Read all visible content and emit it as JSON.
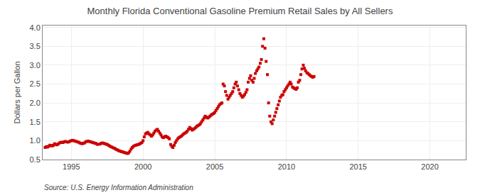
{
  "chart_data": {
    "type": "scatter",
    "title": "Monthly Florida Conventional Gasoline Premium Retail Sales by All Sellers",
    "ylabel": "Dollars per Gallon",
    "annotations": [
      "Source: U.S. Energy Information Administration"
    ],
    "color": "#cc0000",
    "marker": "square",
    "grid": true,
    "xlim": [
      1993.0,
      2022.5
    ],
    "ylim": [
      0.5,
      4.05
    ],
    "xticks": [
      1995,
      2000,
      2005,
      2010,
      2015,
      2020
    ],
    "yticks": [
      0.5,
      {
        "value": 1.0,
        "label": "1.0"
      },
      1.5,
      {
        "value": 2.0,
        "label": "2.0"
      },
      2.5,
      {
        "value": 3.0,
        "label": "3.0"
      },
      3.5,
      {
        "value": 4.0,
        "label": "4.0"
      }
    ],
    "x": [
      1993.17,
      1993.25,
      1993.33,
      1993.42,
      1993.5,
      1993.58,
      1993.67,
      1993.75,
      1993.83,
      1993.92,
      1994.0,
      1994.08,
      1994.17,
      1994.25,
      1994.33,
      1994.42,
      1994.5,
      1994.58,
      1994.67,
      1994.75,
      1994.83,
      1994.92,
      1995.0,
      1995.08,
      1995.17,
      1995.25,
      1995.33,
      1995.42,
      1995.5,
      1995.58,
      1995.67,
      1995.75,
      1995.83,
      1995.92,
      1996.0,
      1996.08,
      1996.17,
      1996.25,
      1996.33,
      1996.42,
      1996.5,
      1996.58,
      1996.67,
      1996.75,
      1996.83,
      1997.0,
      1997.08,
      1997.17,
      1997.25,
      1997.33,
      1997.42,
      1997.5,
      1997.58,
      1997.67,
      1997.75,
      1997.83,
      1997.92,
      1998.0,
      1998.08,
      1998.17,
      1998.25,
      1998.33,
      1998.42,
      1998.5,
      1998.58,
      1998.67,
      1998.75,
      1998.83,
      1998.92,
      1999.0,
      1999.08,
      1999.17,
      1999.25,
      1999.33,
      1999.42,
      1999.5,
      1999.58,
      1999.67,
      1999.75,
      1999.83,
      1999.92,
      2000.0,
      2000.08,
      2000.17,
      2000.25,
      2000.33,
      2000.42,
      2000.5,
      2000.58,
      2000.67,
      2000.75,
      2000.83,
      2000.92,
      2001.0,
      2001.08,
      2001.17,
      2001.25,
      2001.33,
      2001.42,
      2001.5,
      2001.58,
      2001.67,
      2001.75,
      2001.83,
      2001.92,
      2002.0,
      2002.08,
      2002.17,
      2002.25,
      2002.33,
      2002.42,
      2002.5,
      2002.58,
      2002.67,
      2002.75,
      2002.83,
      2002.92,
      2003.0,
      2003.08,
      2003.17,
      2003.25,
      2003.33,
      2003.42,
      2003.5,
      2003.58,
      2003.67,
      2003.75,
      2003.83,
      2003.92,
      2004.0,
      2004.08,
      2004.17,
      2004.25,
      2004.33,
      2004.42,
      2004.5,
      2004.58,
      2004.67,
      2004.75,
      2004.83,
      2004.92,
      2005.0,
      2005.08,
      2005.17,
      2005.25,
      2005.33,
      2005.42,
      2005.5,
      2005.58,
      2005.67,
      2005.75,
      2005.83,
      2005.92,
      2006.0,
      2006.08,
      2006.17,
      2006.25,
      2006.33,
      2006.42,
      2006.5,
      2006.58,
      2006.67,
      2006.75,
      2006.83,
      2006.92,
      2007.0,
      2007.08,
      2007.17,
      2007.25,
      2007.33,
      2007.42,
      2007.5,
      2007.58,
      2007.67,
      2007.75,
      2007.83,
      2007.92,
      2008.0,
      2008.08,
      2008.17,
      2008.25,
      2008.33,
      2008.42,
      2008.5,
      2008.58,
      2008.67,
      2008.75,
      2008.83,
      2008.92,
      2009.0,
      2009.08,
      2009.17,
      2009.25,
      2009.33,
      2009.42,
      2009.5,
      2009.58,
      2009.67,
      2009.75,
      2009.83,
      2009.92,
      2010.0,
      2010.08,
      2010.17,
      2010.25,
      2010.33,
      2010.42,
      2010.5,
      2010.58,
      2010.67,
      2010.75,
      2010.83,
      2010.92,
      2011.0,
      2011.08,
      2011.17,
      2011.25,
      2011.33,
      2011.42,
      2011.5,
      2011.58,
      2011.67,
      2011.75,
      2011.83,
      2011.92
    ],
    "values": [
      0.82,
      0.84,
      0.83,
      0.85,
      0.88,
      0.87,
      0.86,
      0.88,
      0.92,
      0.9,
      0.89,
      0.91,
      0.94,
      0.95,
      0.96,
      0.95,
      0.97,
      0.98,
      0.97,
      0.96,
      0.97,
      0.99,
      1.0,
      1.01,
      1.0,
      0.99,
      0.98,
      0.97,
      0.96,
      0.94,
      0.93,
      0.92,
      0.93,
      0.94,
      0.97,
      0.98,
      0.99,
      0.98,
      0.97,
      0.96,
      0.95,
      0.94,
      0.93,
      0.92,
      0.9,
      0.91,
      0.93,
      0.94,
      0.93,
      0.92,
      0.91,
      0.9,
      0.88,
      0.86,
      0.84,
      0.83,
      0.81,
      0.8,
      0.78,
      0.76,
      0.75,
      0.73,
      0.72,
      0.71,
      0.7,
      0.69,
      0.68,
      0.67,
      0.66,
      0.68,
      0.72,
      0.78,
      0.82,
      0.85,
      0.87,
      0.88,
      0.89,
      0.9,
      0.91,
      0.93,
      0.95,
      1.0,
      1.1,
      1.18,
      1.2,
      1.22,
      1.18,
      1.15,
      1.12,
      1.15,
      1.2,
      1.25,
      1.28,
      1.3,
      1.25,
      1.2,
      1.15,
      1.1,
      1.08,
      1.1,
      1.12,
      1.1,
      1.08,
      1.05,
      0.9,
      0.85,
      0.82,
      0.88,
      0.95,
      1.0,
      1.05,
      1.08,
      1.1,
      1.12,
      1.15,
      1.18,
      1.2,
      1.22,
      1.25,
      1.3,
      1.35,
      1.32,
      1.28,
      1.3,
      1.32,
      1.35,
      1.38,
      1.4,
      1.42,
      1.45,
      1.5,
      1.55,
      1.6,
      1.65,
      1.62,
      1.6,
      1.62,
      1.65,
      1.68,
      1.7,
      1.72,
      1.75,
      1.8,
      1.85,
      1.9,
      1.95,
      1.98,
      2.0,
      2.5,
      2.45,
      2.3,
      2.2,
      2.1,
      2.15,
      2.2,
      2.25,
      2.3,
      2.4,
      2.5,
      2.55,
      2.45,
      2.35,
      2.25,
      2.2,
      2.15,
      2.18,
      2.22,
      2.28,
      2.35,
      2.55,
      2.65,
      2.72,
      2.6,
      2.55,
      2.65,
      2.78,
      2.85,
      2.9,
      2.95,
      3.05,
      3.15,
      3.5,
      3.7,
      3.45,
      3.1,
      2.75,
      2.0,
      1.65,
      1.5,
      1.45,
      1.55,
      1.65,
      1.75,
      1.85,
      1.95,
      2.05,
      2.15,
      2.2,
      2.22,
      2.3,
      2.35,
      2.4,
      2.45,
      2.5,
      2.55,
      2.5,
      2.42,
      2.4,
      2.38,
      2.36,
      2.4,
      2.55,
      2.6,
      2.75,
      2.9,
      3.0,
      2.92,
      2.85,
      2.8,
      2.78,
      2.75,
      2.72,
      2.7,
      2.68,
      2.7
    ]
  }
}
